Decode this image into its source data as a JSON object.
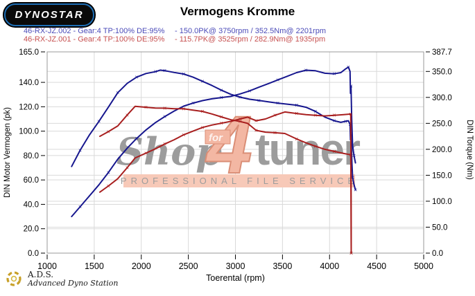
{
  "header": {
    "logo_text": "DYNOSTAR",
    "title": "Vermogens Kromme"
  },
  "runs": [
    {
      "id_text": "46-RX-JZ.002 - Gear:4 TP:100% DE:95%",
      "result_text": "- 150.0PK@ 3750rpm / 352.5Nm@ 2201rpm",
      "color": "#4a4ab8"
    },
    {
      "id_text": "46-RX-JZ.001 - Gear:4 TP:100% DE:95%",
      "result_text": "- 115.7PK@ 3525rpm / 282.9Nm@ 1935rpm",
      "color": "#c65050"
    }
  ],
  "footer": {
    "abbr": "A.D.S.",
    "name": "Advanced Dyno Station"
  },
  "watermark": {
    "shop": "Shop",
    "for_word": "for",
    "four": "4",
    "tuner": "tuner",
    "band": "PROFESSIONAL FILE SERVICE",
    "gray": "#9c9c9c",
    "salmon_fill": "#f3b7a3",
    "salmon_stroke": "#da8e76",
    "band_bg": "#f7c9b8"
  },
  "colors": {
    "run_002_curve": "#16168e",
    "run_001_curve": "#a81e1e",
    "grid": "#d9d9d9",
    "frame": "#9a9a9a",
    "axis_text": "#000000"
  },
  "chart_data": {
    "type": "line",
    "title": "Vermogens Kromme",
    "xlabel": "Toerental (rpm)",
    "ylabel_left": "DIN Motor Vermogen (pk)",
    "ylabel_right": "DIN Torque (Nm)",
    "xlim": [
      1000,
      5000
    ],
    "ylim_left": [
      0,
      165
    ],
    "ylim_right": [
      0,
      387.7
    ],
    "x_ticks": [
      1000,
      1500,
      2000,
      2500,
      3000,
      3500,
      4000,
      4500,
      5000
    ],
    "y_left_ticks": [
      0,
      20,
      40,
      60,
      80,
      100,
      120,
      140,
      165
    ],
    "y_right_ticks": [
      0,
      50,
      100,
      150,
      200,
      250,
      300,
      350,
      387.7
    ],
    "grid": true,
    "legend_position": "top-left",
    "series": [
      {
        "name": "46-RX-JZ.002 power (pk)",
        "data_name": "power-curve-run-002",
        "axis": "left",
        "color": "#16168e",
        "marker": "x",
        "marker_every": 3,
        "points": [
          [
            1260,
            30
          ],
          [
            1350,
            38
          ],
          [
            1450,
            47
          ],
          [
            1550,
            56
          ],
          [
            1650,
            66
          ],
          [
            1750,
            77
          ],
          [
            1850,
            86
          ],
          [
            1950,
            94
          ],
          [
            2050,
            101
          ],
          [
            2150,
            107
          ],
          [
            2250,
            112
          ],
          [
            2350,
            116.5
          ],
          [
            2450,
            120.5
          ],
          [
            2550,
            123
          ],
          [
            2650,
            125
          ],
          [
            2750,
            126.5
          ],
          [
            2850,
            127.5
          ],
          [
            2950,
            128.5
          ],
          [
            3050,
            130.5
          ],
          [
            3150,
            133
          ],
          [
            3250,
            136
          ],
          [
            3350,
            139
          ],
          [
            3450,
            142
          ],
          [
            3550,
            145
          ],
          [
            3650,
            148
          ],
          [
            3750,
            150
          ],
          [
            3850,
            149.5
          ],
          [
            3950,
            147.5
          ],
          [
            4050,
            147
          ],
          [
            4120,
            148
          ],
          [
            4170,
            151
          ],
          [
            4200,
            152.5
          ],
          [
            4218,
            149
          ],
          [
            4222,
            131
          ],
          [
            4228,
            137
          ],
          [
            4235,
            110
          ],
          [
            4245,
            88
          ],
          [
            4260,
            80
          ],
          [
            4275,
            74
          ]
        ]
      },
      {
        "name": "46-RX-JZ.002 torque (Nm)",
        "data_name": "torque-curve-run-002",
        "axis": "right",
        "color": "#16168e",
        "marker": "x",
        "marker_every": 2,
        "points": [
          [
            1260,
            167
          ],
          [
            1350,
            198
          ],
          [
            1450,
            228
          ],
          [
            1550,
            254
          ],
          [
            1650,
            281
          ],
          [
            1750,
            309
          ],
          [
            1850,
            327
          ],
          [
            1950,
            339
          ],
          [
            2050,
            346
          ],
          [
            2150,
            349.5
          ],
          [
            2201,
            352.5
          ],
          [
            2250,
            351.5
          ],
          [
            2350,
            348
          ],
          [
            2450,
            345
          ],
          [
            2550,
            339
          ],
          [
            2650,
            331
          ],
          [
            2750,
            323
          ],
          [
            2850,
            314
          ],
          [
            2950,
            306
          ],
          [
            3050,
            300.5
          ],
          [
            3150,
            296.5
          ],
          [
            3250,
            294
          ],
          [
            3350,
            291.5
          ],
          [
            3450,
            289
          ],
          [
            3550,
            287
          ],
          [
            3650,
            285
          ],
          [
            3750,
            281
          ],
          [
            3850,
            273
          ],
          [
            3950,
            262
          ],
          [
            4050,
            255
          ],
          [
            4120,
            252
          ],
          [
            4170,
            254
          ],
          [
            4200,
            255
          ],
          [
            4218,
            248
          ],
          [
            4222,
            218
          ],
          [
            4228,
            228
          ],
          [
            4235,
            182
          ],
          [
            4245,
            146
          ],
          [
            4260,
            132
          ],
          [
            4275,
            122
          ]
        ]
      },
      {
        "name": "46-RX-JZ.001 power (pk)",
        "data_name": "power-curve-run-001",
        "axis": "left",
        "color": "#a81e1e",
        "marker": "x",
        "marker_every": 2,
        "points": [
          [
            1560,
            50
          ],
          [
            1650,
            55
          ],
          [
            1750,
            61
          ],
          [
            1850,
            70
          ],
          [
            1935,
            78
          ],
          [
            2050,
            82
          ],
          [
            2150,
            85.5
          ],
          [
            2250,
            89.5
          ],
          [
            2350,
            93
          ],
          [
            2450,
            97
          ],
          [
            2550,
            100
          ],
          [
            2650,
            103
          ],
          [
            2750,
            105
          ],
          [
            2850,
            106.5
          ],
          [
            2950,
            108
          ],
          [
            3050,
            110
          ],
          [
            3130,
            111.5
          ],
          [
            3220,
            108.5
          ],
          [
            3320,
            110
          ],
          [
            3420,
            113
          ],
          [
            3525,
            115.7
          ],
          [
            3650,
            114.5
          ],
          [
            3750,
            113.5
          ],
          [
            3850,
            113
          ],
          [
            3950,
            112.5
          ],
          [
            4050,
            113
          ],
          [
            4150,
            113.5
          ],
          [
            4225,
            114
          ],
          [
            4228,
            60
          ],
          [
            4230,
            0
          ]
        ]
      },
      {
        "name": "46-RX-JZ.001 torque (Nm)",
        "data_name": "torque-curve-run-001",
        "axis": "right",
        "color": "#a81e1e",
        "marker": "x",
        "marker_every": 2,
        "points": [
          [
            1560,
            225
          ],
          [
            1650,
            234
          ],
          [
            1750,
            245
          ],
          [
            1850,
            266
          ],
          [
            1935,
            282.9
          ],
          [
            2050,
            281
          ],
          [
            2150,
            279.5
          ],
          [
            2250,
            279.3
          ],
          [
            2350,
            278
          ],
          [
            2450,
            278
          ],
          [
            2550,
            275.5
          ],
          [
            2650,
            273
          ],
          [
            2750,
            268
          ],
          [
            2850,
            262.5
          ],
          [
            2950,
            257
          ],
          [
            3050,
            253.5
          ],
          [
            3130,
            250
          ],
          [
            3220,
            236.5
          ],
          [
            3320,
            233
          ],
          [
            3420,
            232
          ],
          [
            3525,
            230.5
          ],
          [
            3650,
            220
          ],
          [
            3750,
            212.5
          ],
          [
            3850,
            206
          ],
          [
            3950,
            200
          ],
          [
            4050,
            196
          ],
          [
            4150,
            192
          ],
          [
            4225,
            189.5
          ],
          [
            4228,
            122
          ],
          [
            4230,
            0
          ]
        ]
      }
    ],
    "peaks": [
      {
        "run": "46-RX-JZ.002",
        "power_pk": 150.0,
        "power_rpm": 3750,
        "torque_nm": 352.5,
        "torque_rpm": 2201
      },
      {
        "run": "46-RX-JZ.001",
        "power_pk": 115.7,
        "power_rpm": 3525,
        "torque_nm": 282.9,
        "torque_rpm": 1935
      }
    ]
  }
}
